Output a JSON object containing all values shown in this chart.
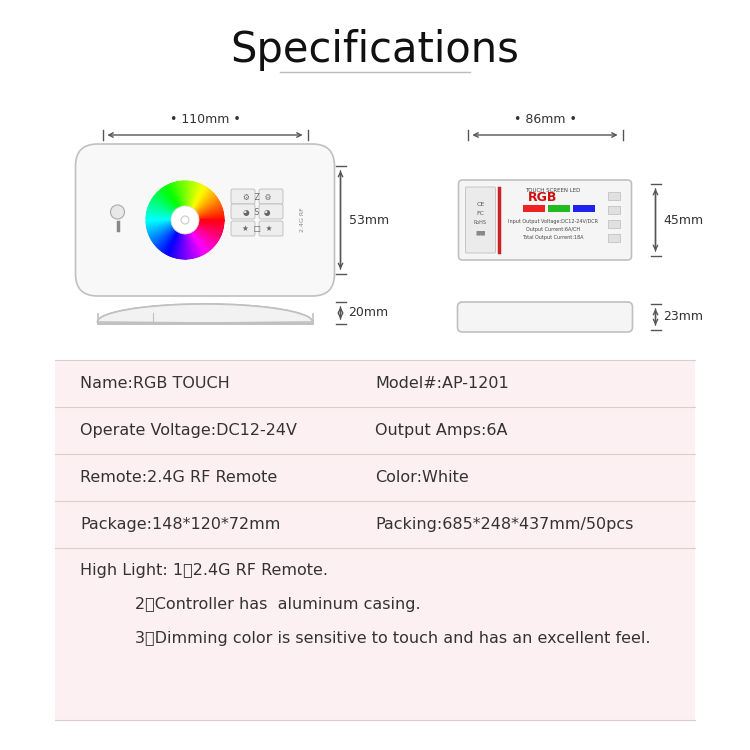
{
  "title": "Specifications",
  "bg_color": "#ffffff",
  "specs_bg_color": "#fdf0f2",
  "text_color": "#333333",
  "dim_line_color": "#555555",
  "line_sep_color": "#ddcccc",
  "specs": [
    {
      "left": "Name:RGB TOUCH",
      "right": "Model#:AP-1201"
    },
    {
      "left": "Operate Voltage:DC12-24V",
      "right": "Output Amps:6A"
    },
    {
      "left": "Remote:2.4G RF Remote",
      "right": "Color:White"
    },
    {
      "left": "Package:148*120*72mm",
      "right": "Packing:685*248*437mm/50pcs"
    }
  ],
  "highlights": [
    "High Light: 1、2.4G RF Remote.",
    "2、Controller has  aluminum casing.",
    "3、Dimming color is sensitive to touch and has an excellent feel."
  ],
  "dim_remote_width": "•110mm•",
  "dim_remote_height": "53mm",
  "dim_remote_depth": "20mm",
  "dim_controller_width": "…86mm…",
  "dim_controller_height": "45mm",
  "dim_controller_depth": "23mm"
}
